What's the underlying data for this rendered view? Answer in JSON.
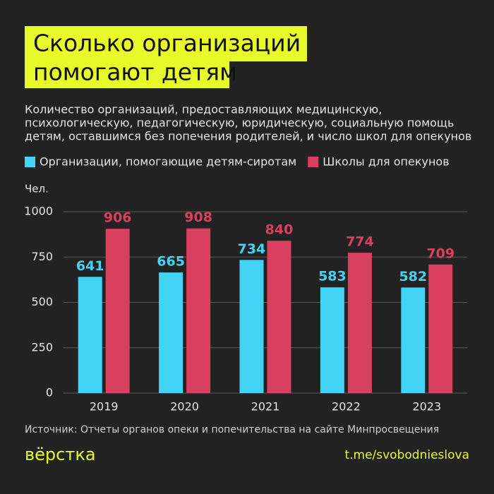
{
  "chart_data": {
    "type": "bar",
    "title": [
      "Сколько организаций",
      "помогают детям"
    ],
    "subtitle": [
      "Количество организаций, предоставляющих медицинскую,",
      "психологическую, педагогическую, юридическую, социальную помощь",
      "детям, оставшимся без попечения родителей, и число школ для опекунов"
    ],
    "y_label": "Чел.",
    "categories": [
      "2019",
      "2020",
      "2021",
      "2022",
      "2023"
    ],
    "series": [
      {
        "name": "Организации, помогающие детям-сиротам",
        "color": "#42d3f5",
        "values": [
          641,
          665,
          734,
          583,
          582
        ]
      },
      {
        "name": "Школы для опекунов",
        "color": "#d93f5f",
        "values": [
          906,
          908,
          840,
          774,
          709
        ]
      }
    ],
    "ylim": [
      0,
      1000
    ],
    "yticks": [
      0,
      250,
      500,
      750,
      1000
    ],
    "grid": true,
    "source": "Источник: Отчеты органов опеки и попечительства на сайте Минпросвещения",
    "brand": "вёрстка",
    "link": "t.me/svobodnieslova"
  }
}
